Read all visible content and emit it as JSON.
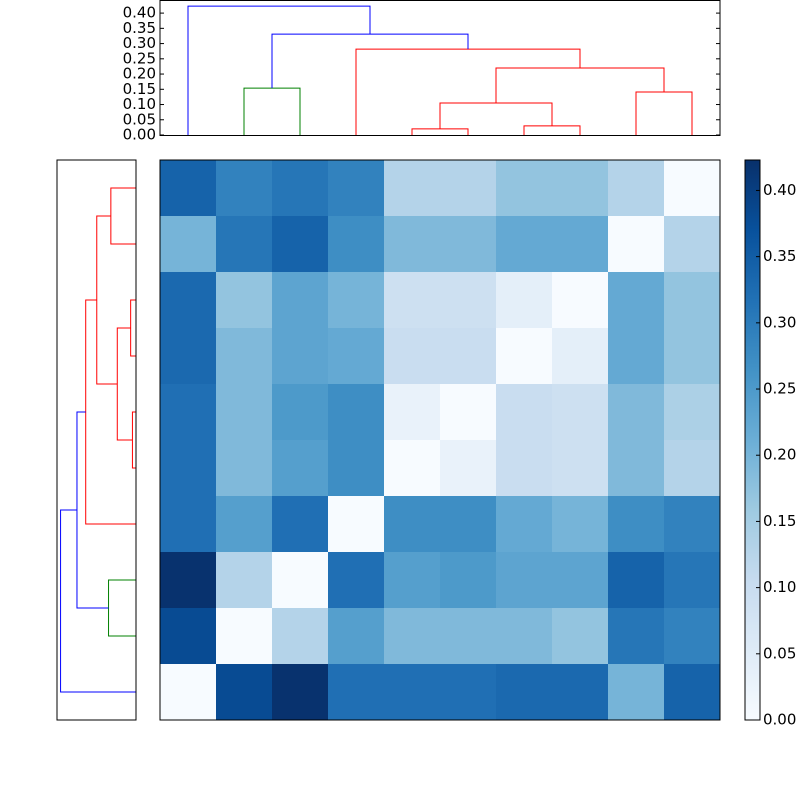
{
  "chart_data": {
    "type": "heatmap",
    "colormap": "Blues",
    "z": [
      [
        0.34,
        0.29,
        0.31,
        0.29,
        0.13,
        0.13,
        0.17,
        0.17,
        0.13,
        0.0
      ],
      [
        0.2,
        0.31,
        0.34,
        0.27,
        0.19,
        0.19,
        0.22,
        0.22,
        0.0,
        0.13
      ],
      [
        0.33,
        0.17,
        0.23,
        0.2,
        0.09,
        0.09,
        0.04,
        0.0,
        0.22,
        0.17
      ],
      [
        0.33,
        0.19,
        0.23,
        0.22,
        0.1,
        0.1,
        0.0,
        0.04,
        0.22,
        0.17
      ],
      [
        0.32,
        0.19,
        0.25,
        0.27,
        0.03,
        0.0,
        0.1,
        0.09,
        0.19,
        0.14
      ],
      [
        0.32,
        0.19,
        0.24,
        0.27,
        0.0,
        0.03,
        0.1,
        0.09,
        0.19,
        0.13
      ],
      [
        0.32,
        0.24,
        0.32,
        0.0,
        0.27,
        0.27,
        0.22,
        0.2,
        0.27,
        0.29
      ],
      [
        0.42,
        0.13,
        0.0,
        0.32,
        0.24,
        0.25,
        0.23,
        0.23,
        0.34,
        0.31
      ],
      [
        0.38,
        0.0,
        0.13,
        0.24,
        0.19,
        0.19,
        0.19,
        0.17,
        0.31,
        0.29
      ],
      [
        0.0,
        0.38,
        0.42,
        0.32,
        0.32,
        0.32,
        0.33,
        0.33,
        0.2,
        0.34
      ]
    ],
    "clim": [
      0,
      0.423
    ],
    "colorbar_ticks": [
      {
        "value": 0,
        "label": "0.00"
      },
      {
        "value": 0.05,
        "label": "0.05"
      },
      {
        "value": 0.1,
        "label": "0.10"
      },
      {
        "value": 0.15,
        "label": "0.15"
      },
      {
        "value": 0.2,
        "label": "0.20"
      },
      {
        "value": 0.25,
        "label": "0.25"
      },
      {
        "value": 0.3,
        "label": "0.30"
      },
      {
        "value": 0.35,
        "label": "0.35"
      },
      {
        "value": 0.4,
        "label": "0.40"
      }
    ],
    "dendrogram": {
      "ylim": [
        0,
        0.443
      ],
      "yticks": [
        {
          "value": 0,
          "label": "0.00"
        },
        {
          "value": 0.05,
          "label": "0.05"
        },
        {
          "value": 0.1,
          "label": "0.10"
        },
        {
          "value": 0.15,
          "label": "0.15"
        },
        {
          "value": 0.2,
          "label": "0.20"
        },
        {
          "value": 0.25,
          "label": "0.25"
        },
        {
          "value": 0.3,
          "label": "0.30"
        },
        {
          "value": 0.35,
          "label": "0.35"
        },
        {
          "value": 0.4,
          "label": "0.40"
        }
      ],
      "links": [
        {
          "pos": [
            1,
            2
          ],
          "base": [
            0,
            0
          ],
          "height": 0.154,
          "color": "#008000"
        },
        {
          "pos": [
            4,
            5
          ],
          "base": [
            0,
            0
          ],
          "height": 0.02,
          "color": "#ff0000"
        },
        {
          "pos": [
            6,
            7
          ],
          "base": [
            0,
            0
          ],
          "height": 0.03,
          "color": "#ff0000"
        },
        {
          "pos": [
            4.5,
            6.5
          ],
          "base": [
            0.02,
            0.03
          ],
          "height": 0.105,
          "color": "#ff0000"
        },
        {
          "pos": [
            8,
            9
          ],
          "base": [
            0,
            0
          ],
          "height": 0.141,
          "color": "#ff0000"
        },
        {
          "pos": [
            5.5,
            8.5
          ],
          "base": [
            0.105,
            0.141
          ],
          "height": 0.22,
          "color": "#ff0000"
        },
        {
          "pos": [
            3,
            7
          ],
          "base": [
            0,
            0.22
          ],
          "height": 0.282,
          "color": "#ff0000"
        },
        {
          "pos": [
            1.5,
            5
          ],
          "base": [
            0.154,
            0.282
          ],
          "height": 0.331,
          "color": "#0000ff"
        },
        {
          "pos": [
            0,
            3.25
          ],
          "base": [
            0,
            0.331
          ],
          "height": 0.423,
          "color": "#0000ff"
        }
      ]
    }
  }
}
